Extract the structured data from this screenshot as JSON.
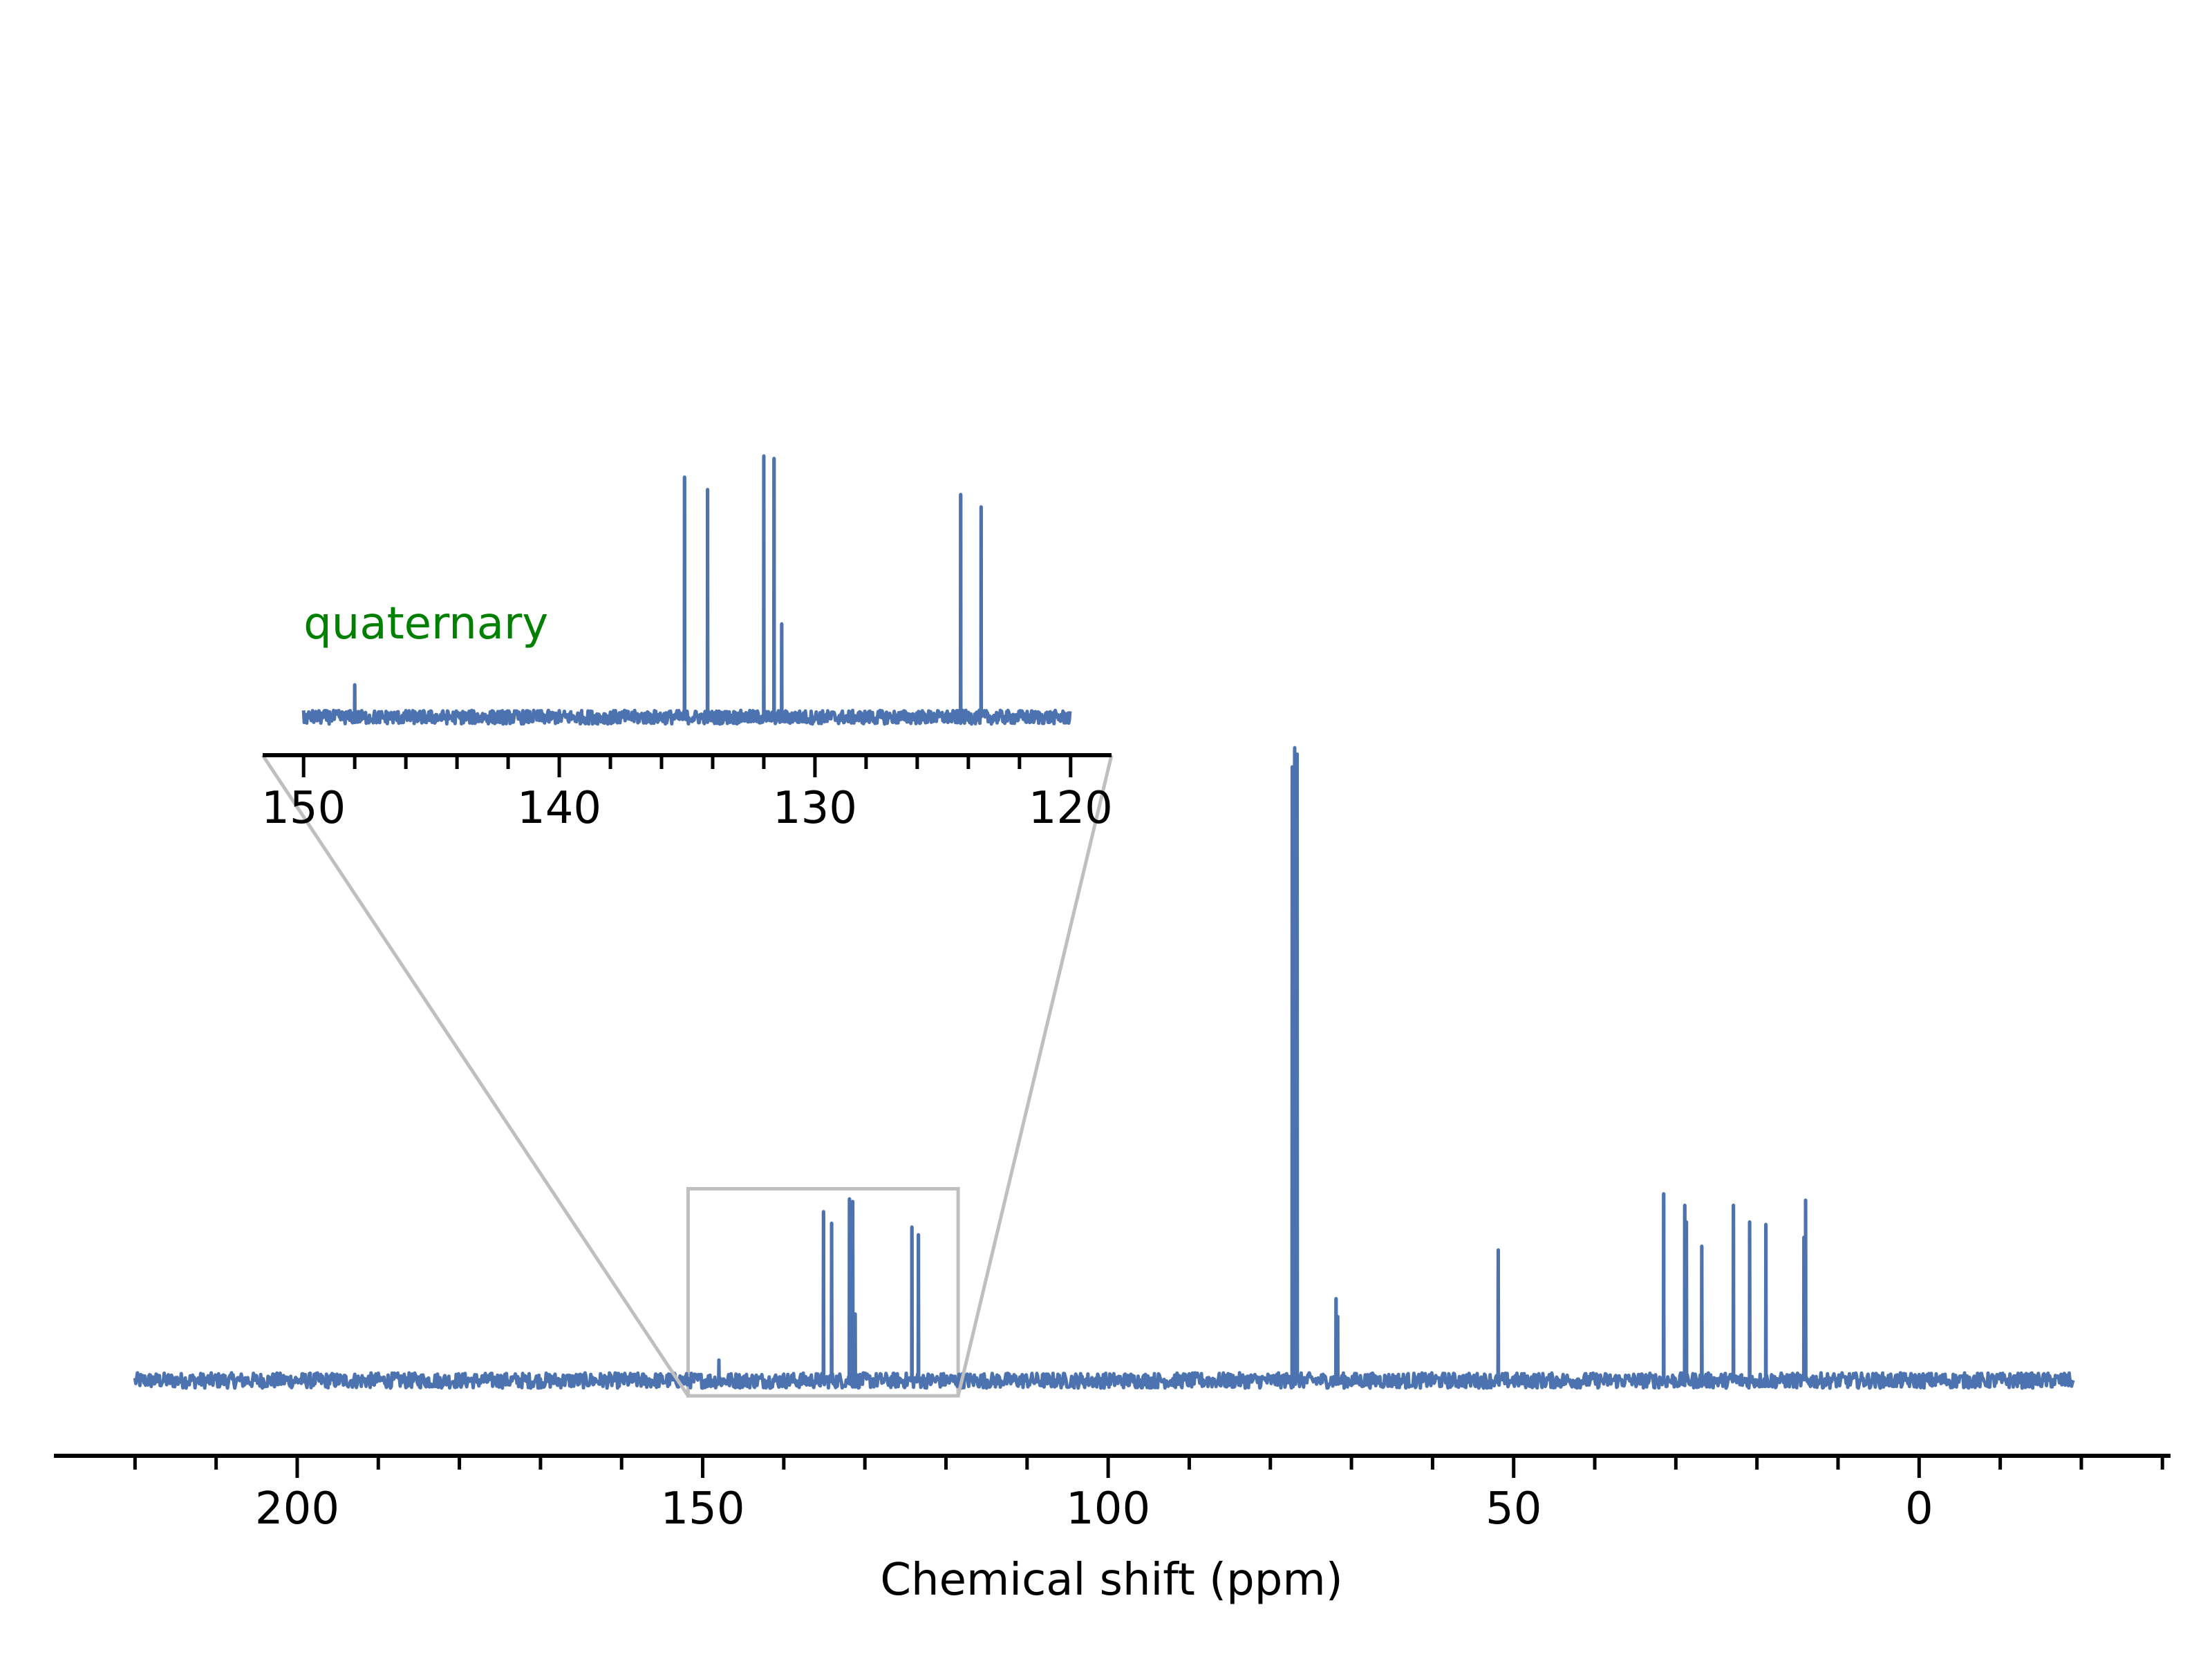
{
  "chart_data": [
    {
      "type": "line",
      "role": "main",
      "xlabel": "Chemical shift (ppm)",
      "ylabel": "",
      "title": "",
      "xlim": [
        230,
        -31
      ],
      "x_reversed": true,
      "x_range_plotted": [
        220,
        -19
      ],
      "baseline": 0,
      "y_axis_visible": false,
      "grid": false,
      "xticks": [
        200,
        150,
        100,
        50,
        0
      ],
      "tick_labels": [
        "200",
        "150",
        "100",
        "50",
        "0"
      ],
      "minor_tick_step": 10,
      "noise_amplitude": 0.6,
      "series": [
        {
          "color": "#4c72b0",
          "peaks": [
            {
              "x": 148.0,
              "y": 1.6
            },
            {
              "x": 135.1,
              "y": 13.2
            },
            {
              "x": 134.1,
              "y": 12.3
            },
            {
              "x": 131.9,
              "y": 14.2
            },
            {
              "x": 131.5,
              "y": 14.0
            },
            {
              "x": 131.2,
              "y": 5.2
            },
            {
              "x": 124.2,
              "y": 12.0
            },
            {
              "x": 123.4,
              "y": 11.4
            },
            {
              "x": 77.3,
              "y": 48.0
            },
            {
              "x": 77.0,
              "y": 49.5
            },
            {
              "x": 76.7,
              "y": 49.0
            },
            {
              "x": 71.9,
              "y": 6.4
            },
            {
              "x": 71.7,
              "y": 5.0
            },
            {
              "x": 51.9,
              "y": 10.2
            },
            {
              "x": 31.5,
              "y": 14.6
            },
            {
              "x": 28.9,
              "y": 13.7
            },
            {
              "x": 28.7,
              "y": 12.4
            },
            {
              "x": 26.8,
              "y": 10.5
            },
            {
              "x": 22.9,
              "y": 13.7
            },
            {
              "x": 20.9,
              "y": 12.4
            },
            {
              "x": 18.9,
              "y": 12.2
            },
            {
              "x": 14.2,
              "y": 11.2
            },
            {
              "x": 14.0,
              "y": 14.1
            }
          ]
        }
      ],
      "zoom_box": {
        "x": [
          151.8,
          118.5
        ],
        "y": [
          -1.2,
          15.0
        ],
        "color": "#bfbfbf"
      }
    },
    {
      "type": "line",
      "role": "inset",
      "xlim": [
        151.6,
        118.4
      ],
      "x_reversed": true,
      "x_range_plotted": [
        150,
        120
      ],
      "xticks": [
        150,
        140,
        130,
        120
      ],
      "tick_labels": [
        "150",
        "140",
        "130",
        "120"
      ],
      "minor_tick_step": 2,
      "y_axis_visible": false,
      "annotation": {
        "text": "quaternary",
        "x": 150,
        "color": "#008000"
      },
      "series": [
        {
          "color": "#4c72b0",
          "peaks": [
            {
              "x": 148.0,
              "y": 2.6
            },
            {
              "x": 135.1,
              "y": 19.3
            },
            {
              "x": 134.2,
              "y": 18.3
            },
            {
              "x": 132.0,
              "y": 21.0
            },
            {
              "x": 131.6,
              "y": 20.8
            },
            {
              "x": 131.3,
              "y": 7.5
            },
            {
              "x": 124.3,
              "y": 17.9
            },
            {
              "x": 123.5,
              "y": 16.9
            }
          ]
        }
      ]
    }
  ]
}
